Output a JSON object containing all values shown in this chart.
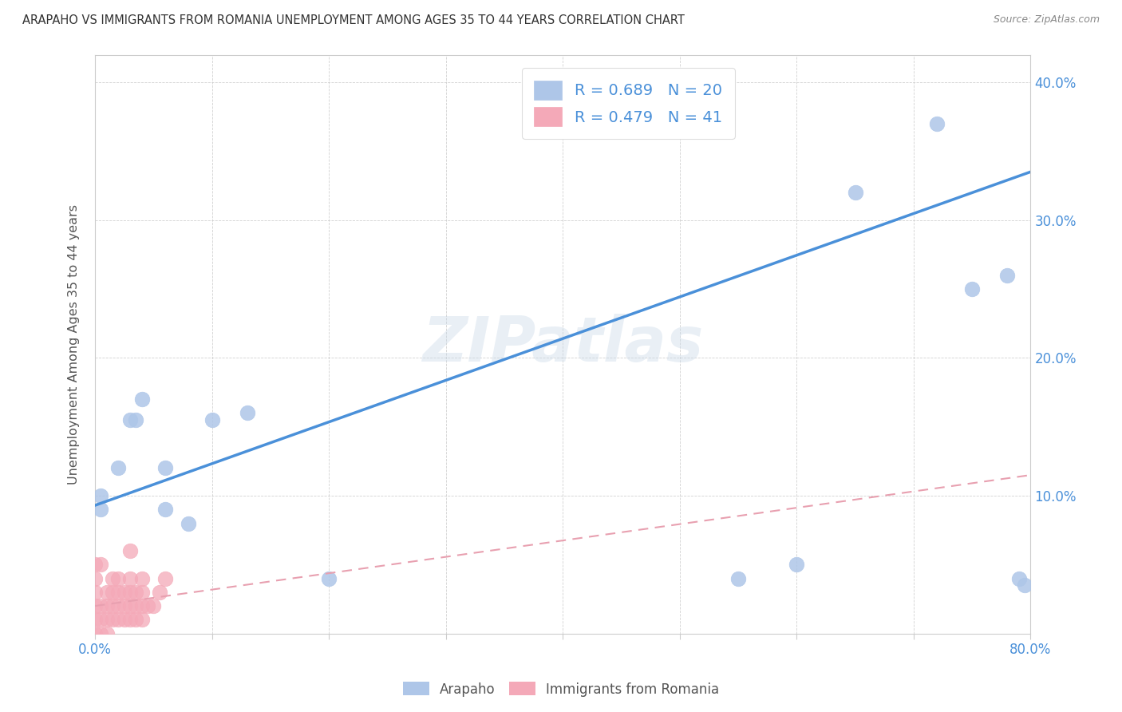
{
  "title": "ARAPAHO VS IMMIGRANTS FROM ROMANIA UNEMPLOYMENT AMONG AGES 35 TO 44 YEARS CORRELATION CHART",
  "source": "Source: ZipAtlas.com",
  "ylabel": "Unemployment Among Ages 35 to 44 years",
  "xlim": [
    0.0,
    0.8
  ],
  "ylim": [
    0.0,
    0.42
  ],
  "xticks": [
    0.0,
    0.1,
    0.2,
    0.3,
    0.4,
    0.5,
    0.6,
    0.7,
    0.8
  ],
  "yticks": [
    0.1,
    0.2,
    0.3,
    0.4
  ],
  "xtick_labels": [
    "0.0%",
    "",
    "",
    "",
    "",
    "",
    "",
    "",
    "80.0%"
  ],
  "arapaho_color": "#aec6e8",
  "romania_color": "#f4a9b8",
  "arapaho_R": 0.689,
  "arapaho_N": 20,
  "romania_R": 0.479,
  "romania_N": 41,
  "arapaho_line_color": "#4a90d9",
  "romania_line_color": "#e8a0b0",
  "watermark": "ZIPatlas",
  "arapaho_x": [
    0.005,
    0.005,
    0.02,
    0.03,
    0.035,
    0.04,
    0.06,
    0.06,
    0.08,
    0.1,
    0.13,
    0.2,
    0.55,
    0.6,
    0.65,
    0.72,
    0.75,
    0.78,
    0.79,
    0.795
  ],
  "arapaho_y": [
    0.09,
    0.1,
    0.12,
    0.155,
    0.155,
    0.17,
    0.09,
    0.12,
    0.08,
    0.155,
    0.16,
    0.04,
    0.04,
    0.05,
    0.32,
    0.37,
    0.25,
    0.26,
    0.04,
    0.035
  ],
  "romania_x": [
    0.0,
    0.0,
    0.0,
    0.0,
    0.0,
    0.0,
    0.005,
    0.005,
    0.005,
    0.005,
    0.01,
    0.01,
    0.01,
    0.01,
    0.015,
    0.015,
    0.015,
    0.015,
    0.02,
    0.02,
    0.02,
    0.02,
    0.025,
    0.025,
    0.025,
    0.03,
    0.03,
    0.03,
    0.03,
    0.03,
    0.035,
    0.035,
    0.035,
    0.04,
    0.04,
    0.04,
    0.04,
    0.045,
    0.05,
    0.055,
    0.06
  ],
  "romania_y": [
    0.0,
    0.01,
    0.02,
    0.03,
    0.04,
    0.05,
    0.0,
    0.01,
    0.02,
    0.05,
    0.0,
    0.01,
    0.02,
    0.03,
    0.01,
    0.02,
    0.03,
    0.04,
    0.01,
    0.02,
    0.03,
    0.04,
    0.01,
    0.02,
    0.03,
    0.01,
    0.02,
    0.03,
    0.04,
    0.06,
    0.01,
    0.02,
    0.03,
    0.01,
    0.02,
    0.03,
    0.04,
    0.02,
    0.02,
    0.03,
    0.04
  ],
  "arapaho_line_x0": 0.0,
  "arapaho_line_y0": 0.093,
  "arapaho_line_x1": 0.8,
  "arapaho_line_y1": 0.335,
  "romania_line_x0": 0.0,
  "romania_line_y0": 0.02,
  "romania_line_x1": 0.8,
  "romania_line_y1": 0.115,
  "legend_text_color": "#4a90d9",
  "bottom_legend": [
    "Arapaho",
    "Immigrants from Romania"
  ]
}
